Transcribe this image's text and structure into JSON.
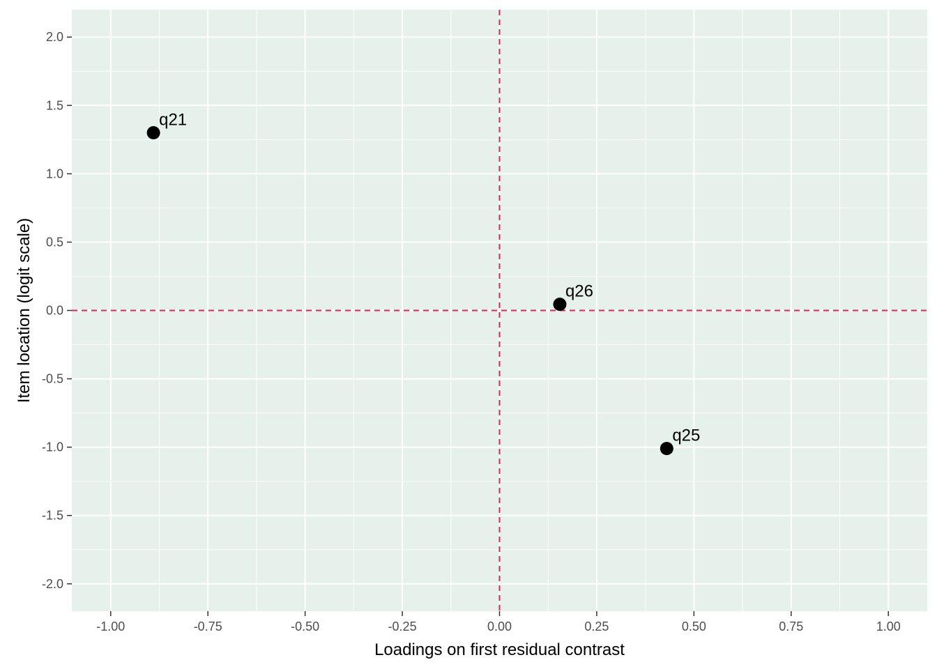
{
  "chart_data": {
    "type": "scatter",
    "title": "",
    "xlabel": "Loadings on first residual contrast",
    "ylabel": "Item location (logit scale)",
    "xlim": [
      -1.1,
      1.1
    ],
    "ylim": [
      -2.2,
      2.2
    ],
    "x_ticks": [
      -1.0,
      -0.75,
      -0.5,
      -0.25,
      0.0,
      0.25,
      0.5,
      0.75,
      1.0
    ],
    "x_tick_labels": [
      "-1.00",
      "-0.75",
      "-0.50",
      "-0.25",
      "0.00",
      "0.25",
      "0.50",
      "0.75",
      "1.00"
    ],
    "y_ticks": [
      -2.0,
      -1.5,
      -1.0,
      -0.5,
      0.0,
      0.5,
      1.0,
      1.5,
      2.0
    ],
    "y_tick_labels": [
      "-2.0",
      "-1.5",
      "-1.0",
      "-0.5",
      "0.0",
      "0.5",
      "1.0",
      "1.5",
      "2.0"
    ],
    "grid": true,
    "reference_lines": {
      "x": 0,
      "y": 0,
      "style": "dashed"
    },
    "points": [
      {
        "label": "q21",
        "x": -0.89,
        "y": 1.3
      },
      {
        "label": "q26",
        "x": 0.155,
        "y": 0.045
      },
      {
        "label": "q25",
        "x": 0.43,
        "y": -1.01
      }
    ],
    "colors": {
      "panel_background": "#e5f1ea",
      "grid": "#ffffff",
      "reference_line": "#e0245e",
      "point": "#000000",
      "tick_text": "#4d4d4d",
      "tick_mark": "#333333"
    }
  }
}
